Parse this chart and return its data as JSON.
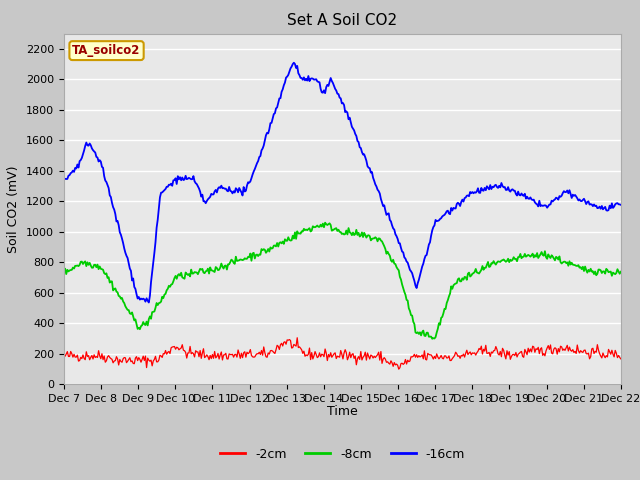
{
  "title": "Set A Soil CO2",
  "ylabel": "Soil CO2 (mV)",
  "xlabel": "Time",
  "ylim": [
    0,
    2300
  ],
  "yticks": [
    0,
    200,
    400,
    600,
    800,
    1000,
    1200,
    1400,
    1600,
    1800,
    2000,
    2200
  ],
  "xtick_labels": [
    "Dec 7",
    "Dec 8",
    "Dec 9",
    "Dec 10",
    "Dec 11",
    "Dec 12",
    "Dec 13",
    "Dec 14",
    "Dec 15",
    "Dec 16",
    "Dec 17",
    "Dec 18",
    "Dec 19",
    "Dec 20",
    "Dec 21",
    "Dec 22"
  ],
  "legend_label": "TA_soilco2",
  "series_labels": [
    "-2cm",
    "-8cm",
    "-16cm"
  ],
  "series_colors": [
    "#ff0000",
    "#00cc00",
    "#0000ff"
  ],
  "fig_bg_color": "#c8c8c8",
  "plot_bg_color": "#e8e8e8",
  "grid_color": "#ffffff",
  "title_fontsize": 11,
  "tick_fontsize": 8,
  "ylabel_fontsize": 9,
  "xlabel_fontsize": 9
}
